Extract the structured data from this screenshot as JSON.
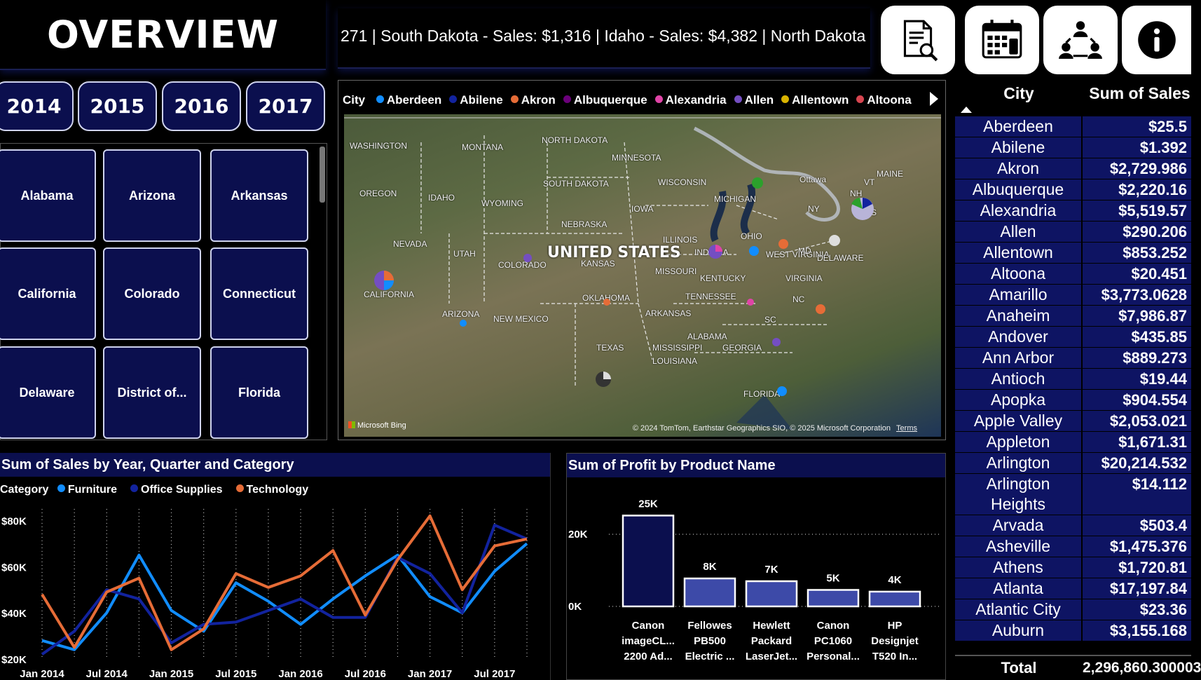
{
  "header": {
    "title": "OVERVIEW"
  },
  "ticker": {
    "text": "271 | South Dakota - Sales: $1,316 | Idaho - Sales: $4,382 | North Dakota"
  },
  "toolbar": {
    "icons": [
      {
        "name": "report-search-icon"
      },
      {
        "name": "calendar-icon"
      },
      {
        "name": "network-users-icon"
      },
      {
        "name": "info-icon"
      }
    ]
  },
  "years": [
    "2014",
    "2015",
    "2016",
    "2017"
  ],
  "states": [
    "Alabama",
    "Arizona",
    "Arkansas",
    "California",
    "Colorado",
    "Connecticut",
    "Delaware",
    "District of...",
    "Florida"
  ],
  "map": {
    "legend_label": "City",
    "legend": [
      {
        "name": "Aberdeen",
        "color": "#118dff"
      },
      {
        "name": "Abilene",
        "color": "#12239e"
      },
      {
        "name": "Akron",
        "color": "#e66c37"
      },
      {
        "name": "Albuquerque",
        "color": "#6b007b"
      },
      {
        "name": "Alexandria",
        "color": "#e044a7"
      },
      {
        "name": "Allen",
        "color": "#744ec2"
      },
      {
        "name": "Allentown",
        "color": "#d9b300"
      },
      {
        "name": "Altoona",
        "color": "#d64550"
      }
    ],
    "country_label": "UNITED STATES",
    "state_labels": [
      "WASHINGTON",
      "MONTANA",
      "NORTH DAKOTA",
      "MINNESOTA",
      "OREGON",
      "IDAHO",
      "WYOMING",
      "SOUTH DAKOTA",
      "WISCONSIN",
      "MICHIGAN",
      "Ottawa",
      "NEBRASKA",
      "IOWA",
      "NEVADA",
      "UTAH",
      "COLORADO",
      "KANSAS",
      "MISSOURI",
      "ILLINOIS",
      "INDIANA",
      "OHIO",
      "WEST VIRGINIA",
      "CALIFORNIA",
      "KENTUCKY",
      "VIRGINIA",
      "OKLAHOMA",
      "TENNESSEE",
      "ARIZONA",
      "NEW MEXICO",
      "ARKANSAS",
      "ALABAMA",
      "GEORGIA",
      "MISSISSIPPI",
      "TEXAS",
      "LOUISIANA",
      "FLORIDA",
      "NY",
      "MAINE",
      "VT",
      "NH",
      "MASS",
      "MD",
      "DELAWARE",
      "NC",
      "SC"
    ],
    "attribution": "© 2024 TomTom, Earthstar Geographics SIO, © 2025 Microsoft Corporation",
    "terms": "Terms",
    "bing": "Microsoft Bing"
  },
  "table": {
    "header_city": "City",
    "header_sales": "Sum of Sales",
    "rows": [
      {
        "city": "Aberdeen",
        "sales": "$25.5"
      },
      {
        "city": "Abilene",
        "sales": "$1.392"
      },
      {
        "city": "Akron",
        "sales": "$2,729.986"
      },
      {
        "city": "Albuquerque",
        "sales": "$2,220.16"
      },
      {
        "city": "Alexandria",
        "sales": "$5,519.57"
      },
      {
        "city": "Allen",
        "sales": "$290.206"
      },
      {
        "city": "Allentown",
        "sales": "$853.252"
      },
      {
        "city": "Altoona",
        "sales": "$20.451"
      },
      {
        "city": "Amarillo",
        "sales": "$3,773.0628"
      },
      {
        "city": "Anaheim",
        "sales": "$7,986.87"
      },
      {
        "city": "Andover",
        "sales": "$435.85"
      },
      {
        "city": "Ann Arbor",
        "sales": "$889.273"
      },
      {
        "city": "Antioch",
        "sales": "$19.44"
      },
      {
        "city": "Apopka",
        "sales": "$904.554"
      },
      {
        "city": "Apple Valley",
        "sales": "$2,053.021"
      },
      {
        "city": "Appleton",
        "sales": "$1,671.31"
      },
      {
        "city": "Arlington",
        "sales": "$20,214.532"
      },
      {
        "city": "Arlington Heights",
        "sales": "$14.112"
      },
      {
        "city": "Arvada",
        "sales": "$503.4"
      },
      {
        "city": "Asheville",
        "sales": "$1,475.376"
      },
      {
        "city": "Athens",
        "sales": "$1,720.81"
      },
      {
        "city": "Atlanta",
        "sales": "$17,197.84"
      },
      {
        "city": "Atlantic City",
        "sales": "$23.36"
      },
      {
        "city": "Auburn",
        "sales": "$3,155.168"
      }
    ],
    "total_label": "Total",
    "total_value": "2,296,860.300003"
  },
  "chart_data": [
    {
      "type": "line",
      "title": "Sum of Sales by Year, Quarter and Category",
      "legend_label": "Category",
      "x": [
        "Jan 2014",
        "Apr 2014",
        "Jul 2014",
        "Oct 2014",
        "Jan 2015",
        "Apr 2015",
        "Jul 2015",
        "Oct 2015",
        "Jan 2016",
        "Apr 2016",
        "Jul 2016",
        "Oct 2016",
        "Jan 2017",
        "Apr 2017",
        "Jul 2017",
        "Oct 2017"
      ],
      "x_tick_labels": [
        "Jan 2014",
        "Jul 2014",
        "Jan 2015",
        "Jul 2015",
        "Jan 2016",
        "Jul 2016",
        "Jan 2017",
        "Jul 2017"
      ],
      "y_ticks": [
        "$20K",
        "$40K",
        "$60K",
        "$80K"
      ],
      "ylim": [
        20000,
        85000
      ],
      "series": [
        {
          "name": "Furniture",
          "color": "#118dff",
          "values": [
            28000,
            24000,
            40000,
            65000,
            41000,
            32000,
            53000,
            45000,
            35000,
            46000,
            56000,
            65000,
            47000,
            40000,
            58000,
            70000
          ]
        },
        {
          "name": "Office Supplies",
          "color": "#12239e",
          "values": [
            22000,
            32000,
            50000,
            46000,
            27000,
            35000,
            36000,
            41000,
            46000,
            38000,
            38000,
            64000,
            57000,
            40000,
            78000,
            72000
          ]
        },
        {
          "name": "Technology",
          "color": "#e66c37",
          "values": [
            48000,
            25000,
            49000,
            55000,
            24000,
            33000,
            57000,
            51000,
            56000,
            67000,
            39000,
            63000,
            82000,
            50000,
            69000,
            72000
          ]
        }
      ],
      "grid": true
    },
    {
      "type": "bar",
      "title": "Sum of Profit by Product Name",
      "categories": [
        "Canon imageCL... 2200 Ad...",
        "Fellowes PB500 Electric ...",
        "Hewlett Packard LaserJet...",
        "Canon PC1060 Personal...",
        "HP Designjet T520 In..."
      ],
      "category_lines": [
        [
          "Canon",
          "imageCL...",
          "2200 Ad..."
        ],
        [
          "Fellowes",
          "PB500",
          "Electric ..."
        ],
        [
          "Hewlett",
          "Packard",
          "LaserJet..."
        ],
        [
          "Canon",
          "PC1060",
          "Personal..."
        ],
        [
          "HP",
          "Designjet",
          "T520 In..."
        ]
      ],
      "values": [
        25199,
        7753,
        6984,
        4571,
        4095
      ],
      "data_labels": [
        "25K",
        "8K",
        "7K",
        "5K",
        "4K"
      ],
      "y_ticks": [
        "0K",
        "20K"
      ],
      "ylim": [
        0,
        28000
      ],
      "colors": [
        "#0b0f4e",
        "#3d4aa8",
        "#3d4aa8",
        "#3d4aa8",
        "#3d4aa8"
      ]
    }
  ]
}
